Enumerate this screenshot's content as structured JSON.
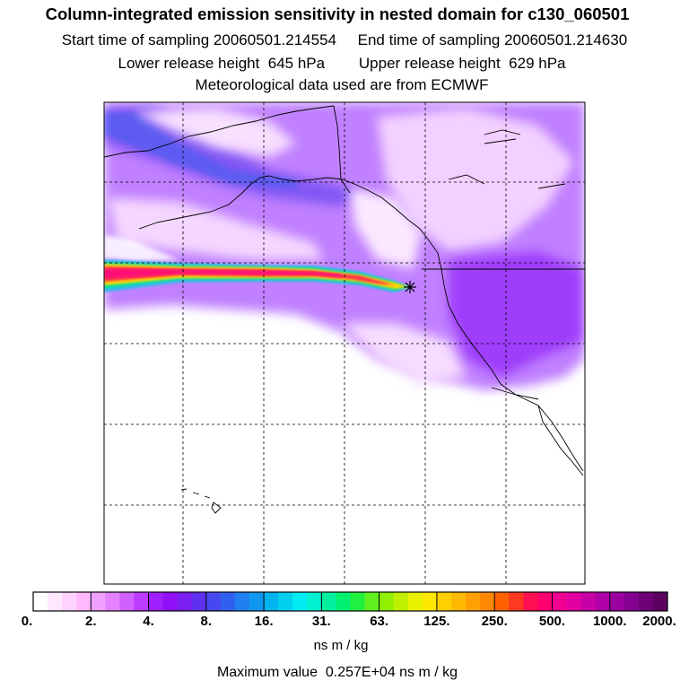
{
  "chart_data": {
    "type": "heatmap",
    "title": "Column-integrated emission sensitivity in nested domain for c130_060501",
    "subtitle_lines": [
      "Start time of sampling 20060501.214554     End time of sampling 20060501.214630",
      "Lower release height  645 hPa        Upper release height  629 hPa",
      "Meteorological data used are from ECMWF"
    ],
    "colorbar": {
      "tick_labels": [
        "0.",
        "2.",
        "4.",
        "8.",
        "16.",
        "31.",
        "63.",
        "125.",
        "250.",
        "500.",
        "1000.",
        "2000."
      ],
      "colors": [
        "#ffffff",
        "#ffe8ff",
        "#ffd2ff",
        "#ffbaff",
        "#f0a0ff",
        "#e482ff",
        "#d060ff",
        "#bc3cff",
        "#a020ff",
        "#9010f8",
        "#7b20f0",
        "#6030f0",
        "#4848f0",
        "#3060f0",
        "#2080f0",
        "#1098f0",
        "#00b4f0",
        "#00d0f0",
        "#00ecf0",
        "#00f0d0",
        "#00f0a0",
        "#00f070",
        "#20f040",
        "#60f020",
        "#90f000",
        "#c0f000",
        "#e8f000",
        "#ffe800",
        "#ffd000",
        "#ffb800",
        "#ffa000",
        "#ff8800",
        "#ff6000",
        "#ff3820",
        "#ff1050",
        "#ff0070",
        "#f00090",
        "#e000a0",
        "#c800a8",
        "#b000a8",
        "#9a00a0",
        "#840090",
        "#6e0078",
        "#5c0060"
      ],
      "units": "ns m / kg"
    },
    "max_value_text": "Maximum value  0.257E+04 ns m / kg",
    "receptor_marker": "cross",
    "grid": true,
    "plume_colors": {
      "core_max": "#ff0a78",
      "core": "#ff3050",
      "mid": "#ffd800",
      "outer": "#00e0a0",
      "edge": "#3cb4f0",
      "background_high": "#a020ff",
      "background_low": "#f0b0ff"
    }
  }
}
